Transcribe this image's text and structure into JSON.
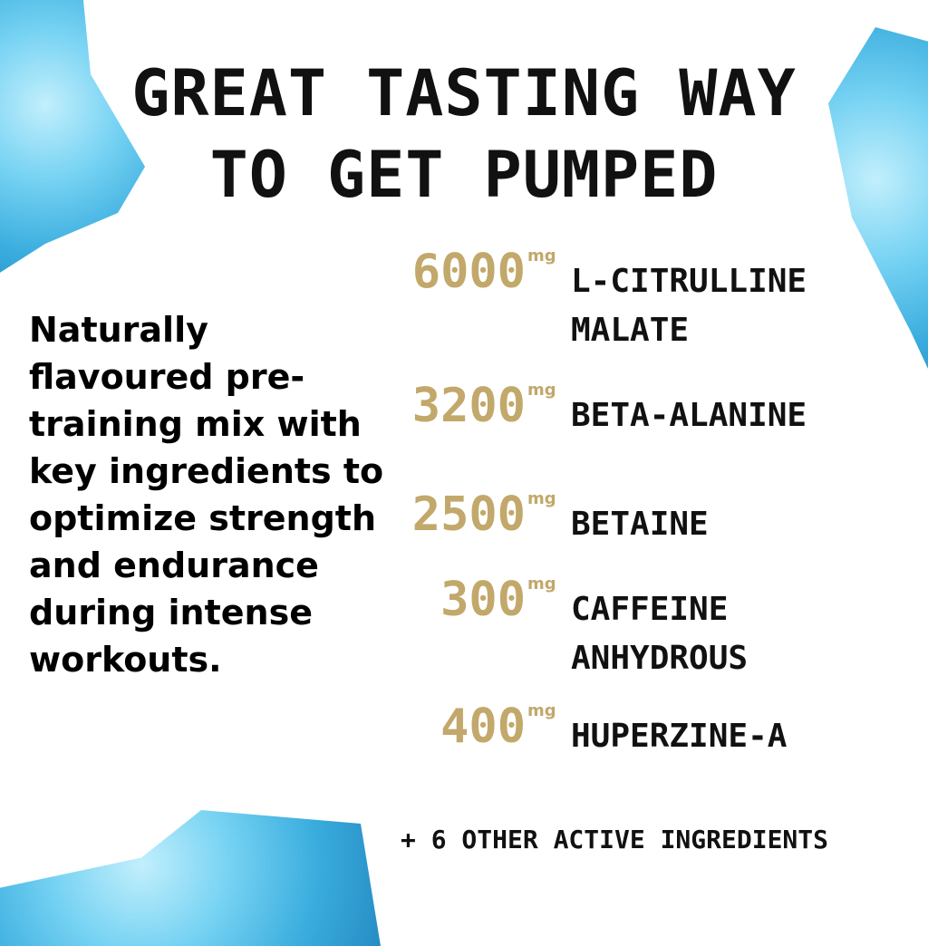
{
  "headline": {
    "line1": "GREAT TASTING WAY",
    "line2": "TO GET PUMPED"
  },
  "description": "Naturally flavoured pre-training mix with key ingredients to optimize strength and endurance during intense workouts.",
  "ingredients": [
    {
      "amount": "6000",
      "unit": "mg",
      "name_line1": "L-CITRULLINE",
      "name_line2": "MALATE"
    },
    {
      "amount": "3200",
      "unit": "mg",
      "name_line1": "BETA-ALANINE",
      "name_line2": ""
    },
    {
      "amount": "2500",
      "unit": "mg",
      "name_line1": "BETAINE",
      "name_line2": ""
    },
    {
      "amount": "300",
      "unit": "mg",
      "name_line1": "CAFFEINE",
      "name_line2": "ANHYDROUS"
    },
    {
      "amount": "400",
      "unit": "mg",
      "name_line1": "HUPERZINE-A",
      "name_line2": ""
    }
  ],
  "footer": "+ 6 OTHER ACTIVE INGREDIENTS",
  "colors": {
    "accent_gold": "#c2a86a",
    "text": "#111111",
    "ice": "#4cc0ea"
  }
}
